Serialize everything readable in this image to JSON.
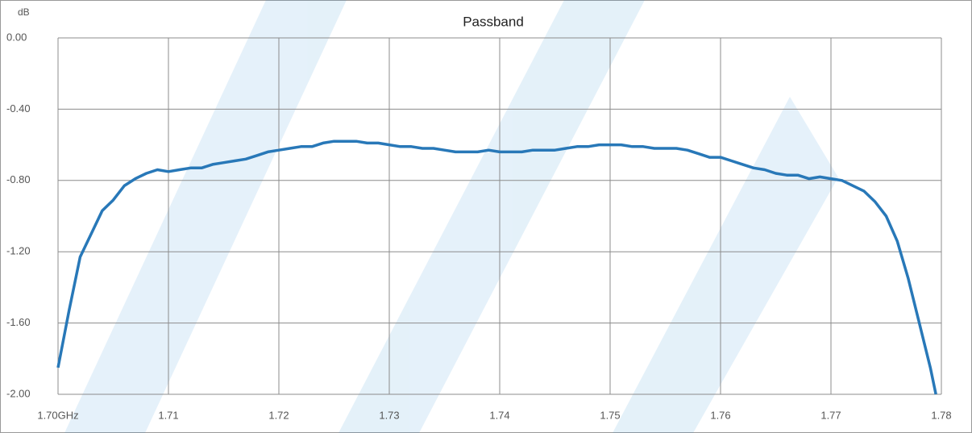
{
  "chart_data": {
    "type": "line",
    "title": "Passband",
    "y_label": "dB",
    "x": [
      1.7,
      1.701,
      1.702,
      1.703,
      1.704,
      1.705,
      1.706,
      1.707,
      1.708,
      1.709,
      1.71,
      1.711,
      1.712,
      1.713,
      1.714,
      1.715,
      1.716,
      1.717,
      1.718,
      1.719,
      1.72,
      1.721,
      1.722,
      1.723,
      1.724,
      1.725,
      1.726,
      1.727,
      1.728,
      1.729,
      1.73,
      1.731,
      1.732,
      1.733,
      1.734,
      1.735,
      1.736,
      1.737,
      1.738,
      1.739,
      1.74,
      1.741,
      1.742,
      1.743,
      1.744,
      1.745,
      1.746,
      1.747,
      1.748,
      1.749,
      1.75,
      1.751,
      1.752,
      1.753,
      1.754,
      1.755,
      1.756,
      1.757,
      1.758,
      1.759,
      1.76,
      1.761,
      1.762,
      1.763,
      1.764,
      1.765,
      1.766,
      1.767,
      1.768,
      1.769,
      1.77,
      1.771,
      1.772,
      1.773,
      1.774,
      1.775,
      1.776,
      1.777,
      1.778,
      1.779,
      1.7795
    ],
    "values": [
      -1.85,
      -1.53,
      -1.23,
      -1.1,
      -0.97,
      -0.91,
      -0.83,
      -0.79,
      -0.76,
      -0.74,
      -0.75,
      -0.74,
      -0.73,
      -0.73,
      -0.71,
      -0.7,
      -0.69,
      -0.68,
      -0.66,
      -0.64,
      -0.63,
      -0.62,
      -0.61,
      -0.61,
      -0.59,
      -0.58,
      -0.58,
      -0.58,
      -0.59,
      -0.59,
      -0.6,
      -0.61,
      -0.61,
      -0.62,
      -0.62,
      -0.63,
      -0.64,
      -0.64,
      -0.64,
      -0.63,
      -0.64,
      -0.64,
      -0.64,
      -0.63,
      -0.63,
      -0.63,
      -0.62,
      -0.61,
      -0.61,
      -0.6,
      -0.6,
      -0.6,
      -0.61,
      -0.61,
      -0.62,
      -0.62,
      -0.62,
      -0.63,
      -0.65,
      -0.67,
      -0.67,
      -0.69,
      -0.71,
      -0.73,
      -0.74,
      -0.76,
      -0.77,
      -0.77,
      -0.79,
      -0.78,
      -0.79,
      -0.8,
      -0.83,
      -0.86,
      -0.92,
      -1.0,
      -1.14,
      -1.35,
      -1.6,
      -1.85,
      -2.0
    ],
    "color": "#2878b8",
    "xlim": [
      1.7,
      1.78
    ],
    "xticks": [
      {
        "value": 1.7,
        "label": "1.70GHz"
      },
      1.71,
      1.72,
      1.73,
      1.74,
      1.75,
      1.76,
      1.77,
      1.78
    ],
    "ylim": [
      -2,
      0
    ],
    "yticks": [
      {
        "value": 0,
        "label": "0.00"
      },
      {
        "value": -0.4,
        "label": "-0.40"
      },
      {
        "value": -0.8,
        "label": "-0.80"
      },
      {
        "value": -1.2,
        "label": "-1.20"
      },
      {
        "value": -1.6,
        "label": "-1.60"
      },
      {
        "value": -2,
        "label": "-2.00"
      }
    ],
    "grid": true
  }
}
